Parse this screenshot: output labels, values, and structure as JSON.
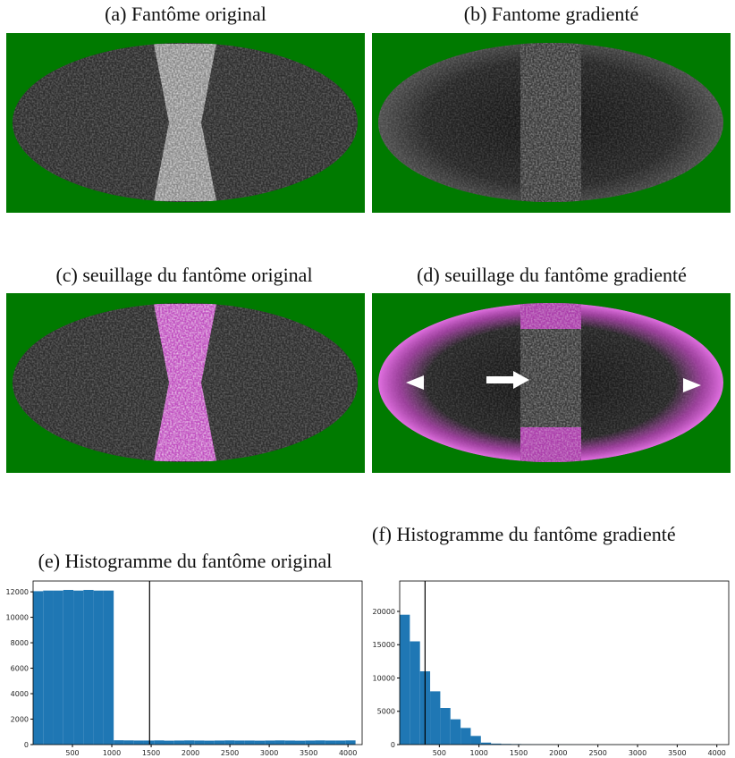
{
  "panels": [
    {
      "caption": "(a) Fantôme original"
    },
    {
      "caption": "(b) Fantome gradienté"
    },
    {
      "caption": "(c) seuillage du fantôme original"
    },
    {
      "caption": "(d) seuillage du fantôme gradienté"
    }
  ],
  "chart_data": [
    {
      "type": "histogram",
      "title": "(e) Histogramme du fantôme original",
      "color": "#1f77b4",
      "bins": [
        0,
        128,
        256,
        384,
        512,
        640,
        768,
        896,
        1024,
        1152,
        1280,
        1408,
        1536,
        1664,
        1792,
        1920,
        2048,
        2176,
        2304,
        2432,
        2560,
        2688,
        2816,
        2944,
        3072,
        3200,
        3328,
        3456,
        3584,
        3712,
        3840,
        3968,
        4096
      ],
      "values": [
        12050,
        12100,
        12100,
        12150,
        12100,
        12150,
        12100,
        12100,
        340,
        330,
        320,
        320,
        330,
        310,
        320,
        330,
        320,
        310,
        320,
        330,
        320,
        320,
        310,
        320,
        330,
        320,
        310,
        320,
        330,
        320,
        320,
        330
      ],
      "xlim": [
        0,
        4180
      ],
      "ylim": [
        0,
        12850
      ],
      "xticks": [
        500,
        1000,
        1500,
        2000,
        2500,
        3000,
        3500,
        4000
      ],
      "yticks": [
        0,
        2000,
        4000,
        6000,
        8000,
        10000,
        12000
      ],
      "vline": 1480
    },
    {
      "type": "histogram",
      "title": "(f) Histogramme du fantôme gradienté",
      "color": "#1f77b4",
      "bins": [
        0,
        128,
        256,
        384,
        512,
        640,
        768,
        896,
        1024,
        1152,
        1280,
        1408,
        1536,
        1664,
        1792,
        1920,
        2048,
        2176,
        2304,
        2432,
        2560,
        2688,
        2816,
        2944,
        3072,
        3200,
        3328,
        3456,
        3584,
        3712,
        3840,
        3968,
        4096
      ],
      "values": [
        19500,
        15500,
        11000,
        8000,
        5500,
        3800,
        2500,
        1300,
        300,
        150,
        100,
        80,
        60,
        50,
        40,
        30,
        25,
        20,
        15,
        10,
        10,
        8,
        6,
        5,
        4,
        3,
        3,
        2,
        2,
        1,
        1,
        1
      ],
      "xlim": [
        0,
        4150
      ],
      "ylim": [
        0,
        24560
      ],
      "xticks": [
        500,
        1000,
        1500,
        2000,
        2500,
        3000,
        3500,
        4000
      ],
      "yticks": [
        0,
        5000,
        10000,
        15000,
        20000
      ],
      "vline": 320
    }
  ]
}
